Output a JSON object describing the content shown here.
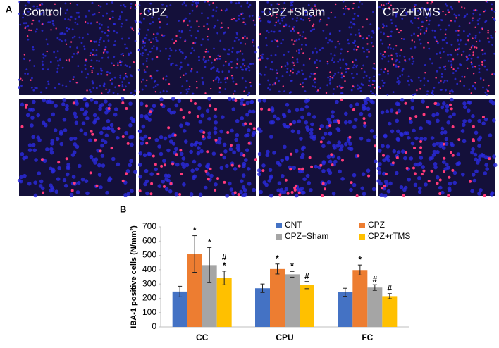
{
  "figure": {
    "panel_a_label": "A",
    "image_labels": [
      "Control",
      "CPZ",
      "CPZ+Sham",
      "CPZ+DMS"
    ],
    "panel_b_label": "B"
  },
  "chart_data": {
    "type": "bar",
    "y_label": "IBA-1 positive cells (N/mm²)",
    "categories": [
      "CC",
      "CPU",
      "FC"
    ],
    "series": [
      {
        "name": "CNT",
        "color": "#4472c4",
        "values": [
          247,
          270,
          242
        ],
        "errors": [
          37,
          30,
          28
        ]
      },
      {
        "name": "CPZ",
        "color": "#ed7d31",
        "values": [
          510,
          405,
          398
        ],
        "errors": [
          128,
          35,
          35
        ],
        "annotations": [
          [
            "*"
          ],
          [
            "*"
          ],
          [
            "*"
          ]
        ]
      },
      {
        "name": "CPZ+Sham",
        "color": "#a5a5a5",
        "values": [
          432,
          368,
          275
        ],
        "errors": [
          123,
          20,
          20
        ],
        "annotations": [
          [
            "*"
          ],
          [
            "*"
          ],
          [
            "#"
          ]
        ]
      },
      {
        "name": "CPZ+rTMS",
        "color": "#ffc000",
        "values": [
          342,
          292,
          215
        ],
        "errors": [
          48,
          25,
          18
        ],
        "annotations": [
          [
            "#",
            "*"
          ],
          [
            "#"
          ],
          [
            "#"
          ]
        ]
      }
    ],
    "ylim": [
      0,
      700
    ],
    "yticks": [
      0,
      100,
      200,
      300,
      400,
      500,
      600,
      700
    ],
    "legend": "top-right"
  }
}
